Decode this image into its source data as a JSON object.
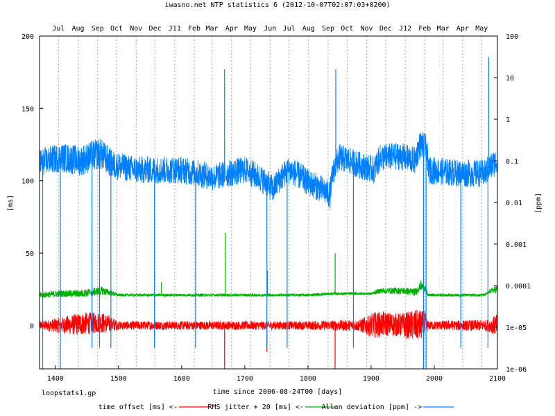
{
  "chart_data": {
    "type": "line",
    "title": "iwasno.net NTP statistics 6 (2012-10-07T02:07:03+0200)",
    "xlabel": "time since 2006-08-24T00 [days]",
    "ylabel": "[ms]",
    "y2label": "[ppm]",
    "footer": "loopstats1.gp",
    "xlim": [
      1375,
      2100
    ],
    "ylim": [
      -30,
      200
    ],
    "y2lim": [
      1e-06,
      100
    ],
    "y2scale": "log",
    "x_ticks": [
      1400,
      1500,
      1600,
      1700,
      1800,
      1900,
      2000,
      2100
    ],
    "y_ticks": [
      0,
      50,
      100,
      150,
      200
    ],
    "y2_ticks": [
      {
        "value": 1e-06,
        "label": "1e-06"
      },
      {
        "value": 1e-05,
        "label": "1e-05"
      },
      {
        "value": 0.0001,
        "label": "0.0001"
      },
      {
        "value": 0.001,
        "label": "0.001"
      },
      {
        "value": 0.01,
        "label": "0.01"
      },
      {
        "value": 0.1,
        "label": "0.1"
      },
      {
        "value": 1,
        "label": "1"
      },
      {
        "value": 10,
        "label": "10"
      },
      {
        "value": 100,
        "label": "100"
      }
    ],
    "month_ticks": [
      {
        "label": "Jul",
        "x": 1405
      },
      {
        "label": "Aug",
        "x": 1436
      },
      {
        "label": "Sep",
        "x": 1467
      },
      {
        "label": "Oct",
        "x": 1497
      },
      {
        "label": "Nov",
        "x": 1528
      },
      {
        "label": "Dec",
        "x": 1558
      },
      {
        "label": "J11",
        "x": 1589
      },
      {
        "label": "Feb",
        "x": 1620
      },
      {
        "label": "Mar",
        "x": 1648
      },
      {
        "label": "Apr",
        "x": 1679
      },
      {
        "label": "May",
        "x": 1709
      },
      {
        "label": "Jun",
        "x": 1740
      },
      {
        "label": "Jul",
        "x": 1770
      },
      {
        "label": "Aug",
        "x": 1801
      },
      {
        "label": "Sep",
        "x": 1832
      },
      {
        "label": "Oct",
        "x": 1862
      },
      {
        "label": "Nov",
        "x": 1893
      },
      {
        "label": "Dec",
        "x": 1923
      },
      {
        "label": "J12",
        "x": 1954
      },
      {
        "label": "Feb",
        "x": 1985
      },
      {
        "label": "Mar",
        "x": 2014
      },
      {
        "label": "Apr",
        "x": 2045
      },
      {
        "label": "May",
        "x": 2075
      }
    ],
    "grid": {
      "x_minor": true,
      "y": false
    },
    "legend_position": "bottom",
    "series": [
      {
        "name": "time offset [ms] <-",
        "color": "#ff0000",
        "axis": "y1",
        "base": [
          [
            1375,
            0
          ],
          [
            1410,
            0
          ],
          [
            1440,
            1
          ],
          [
            1470,
            2
          ],
          [
            1500,
            0
          ],
          [
            1600,
            0
          ],
          [
            1700,
            0
          ],
          [
            1800,
            0
          ],
          [
            1900,
            0
          ],
          [
            1920,
            1
          ],
          [
            1960,
            0
          ],
          [
            2000,
            0
          ],
          [
            2100,
            0
          ]
        ],
        "noise": [
          [
            1375,
            3
          ],
          [
            1440,
            8
          ],
          [
            1480,
            7
          ],
          [
            1500,
            3
          ],
          [
            1800,
            3
          ],
          [
            1880,
            4
          ],
          [
            1905,
            9
          ],
          [
            1945,
            8
          ],
          [
            1970,
            11
          ],
          [
            1985,
            10
          ],
          [
            1990,
            3
          ],
          [
            2085,
            4
          ],
          [
            2100,
            8
          ]
        ],
        "spikes": [
          [
            1668,
            -30
          ],
          [
            1735,
            -18
          ],
          [
            1843,
            -30
          ],
          [
            1983,
            -22
          ]
        ]
      },
      {
        "name": "RMS jitter + 20 [ms] <-",
        "color": "#00b000",
        "axis": "y1",
        "base": [
          [
            1375,
            21
          ],
          [
            1410,
            22
          ],
          [
            1440,
            22
          ],
          [
            1475,
            24
          ],
          [
            1500,
            21
          ],
          [
            1600,
            21
          ],
          [
            1800,
            21
          ],
          [
            1840,
            22
          ],
          [
            1900,
            22
          ],
          [
            1915,
            24
          ],
          [
            1950,
            24
          ],
          [
            1970,
            23
          ],
          [
            1978,
            27
          ],
          [
            1985,
            26
          ],
          [
            1990,
            21
          ],
          [
            2080,
            21
          ],
          [
            2090,
            24
          ],
          [
            2100,
            25
          ]
        ],
        "noise": [
          [
            1375,
            2
          ],
          [
            1475,
            3
          ],
          [
            1500,
            1
          ],
          [
            1900,
            1
          ],
          [
            1915,
            2
          ],
          [
            1985,
            3
          ],
          [
            1990,
            1
          ],
          [
            2085,
            1
          ],
          [
            2100,
            3
          ]
        ],
        "spikes": [
          [
            1568,
            30
          ],
          [
            1669,
            64
          ],
          [
            1736,
            38
          ],
          [
            1843,
            50
          ],
          [
            1979,
            31
          ]
        ]
      },
      {
        "name": "Allan deviation [ppm] ->",
        "color": "#0080ff",
        "axis": "y2",
        "base": [
          [
            1375,
            0.09
          ],
          [
            1410,
            0.12
          ],
          [
            1440,
            0.1
          ],
          [
            1470,
            0.15
          ],
          [
            1490,
            0.08
          ],
          [
            1530,
            0.06
          ],
          [
            1600,
            0.06
          ],
          [
            1650,
            0.04
          ],
          [
            1700,
            0.06
          ],
          [
            1745,
            0.02
          ],
          [
            1770,
            0.06
          ],
          [
            1800,
            0.03
          ],
          [
            1835,
            0.015
          ],
          [
            1850,
            0.12
          ],
          [
            1880,
            0.08
          ],
          [
            1905,
            0.06
          ],
          [
            1915,
            0.12
          ],
          [
            1945,
            0.13
          ],
          [
            1970,
            0.1
          ],
          [
            1978,
            0.25
          ],
          [
            1988,
            0.2
          ],
          [
            1990,
            0.06
          ],
          [
            2040,
            0.05
          ],
          [
            2080,
            0.05
          ],
          [
            2100,
            0.1
          ]
        ],
        "noise": [
          [
            1375,
            3
          ],
          [
            1470,
            3.5
          ],
          [
            1500,
            3
          ],
          [
            2100,
            3
          ]
        ],
        "spikes": [
          [
            1380,
            -6
          ],
          [
            1408,
            -6
          ],
          [
            1458,
            -5.5
          ],
          [
            1470,
            -5.5
          ],
          [
            1488,
            -5.5
          ],
          [
            1557,
            -5.5
          ],
          [
            1622,
            -5.5
          ],
          [
            1668,
            1.2
          ],
          [
            1735,
            -5.5
          ],
          [
            1767,
            -5.5
          ],
          [
            1844,
            1.2
          ],
          [
            1872,
            -5.5
          ],
          [
            1983,
            -6
          ],
          [
            1987,
            -6
          ],
          [
            2042,
            -5.5
          ],
          [
            2085,
            -5.5
          ],
          [
            2086,
            1.5
          ]
        ]
      }
    ]
  }
}
